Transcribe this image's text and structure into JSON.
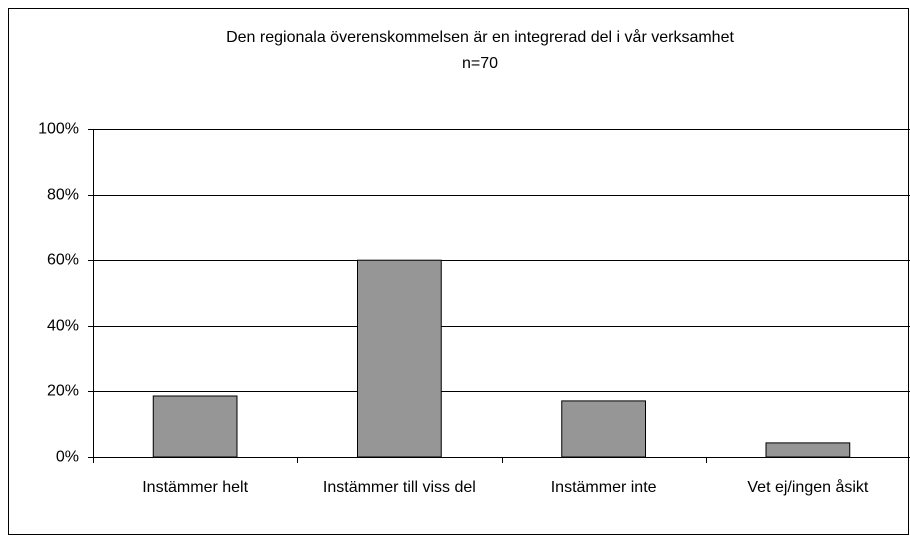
{
  "chart_data": {
    "type": "bar",
    "title": "Den regionala överenskommelsen är en integrerad del i vår verksamhet",
    "subtitle": "n=70",
    "categories": [
      "Instämmer helt",
      "Instämmer till viss del",
      "Instämmer inte",
      "Vet ej/ingen åsikt"
    ],
    "values": [
      18.6,
      60,
      17.1,
      4.3
    ],
    "color": "#969696",
    "ylim": [
      0,
      100
    ],
    "yticks": [
      {
        "value": 0,
        "label": "0%"
      },
      {
        "value": 20,
        "label": "20%"
      },
      {
        "value": 40,
        "label": "40%"
      },
      {
        "value": 60,
        "label": "60%"
      },
      {
        "value": 80,
        "label": "80%"
      },
      {
        "value": 100,
        "label": "100%"
      }
    ],
    "grid": true
  }
}
